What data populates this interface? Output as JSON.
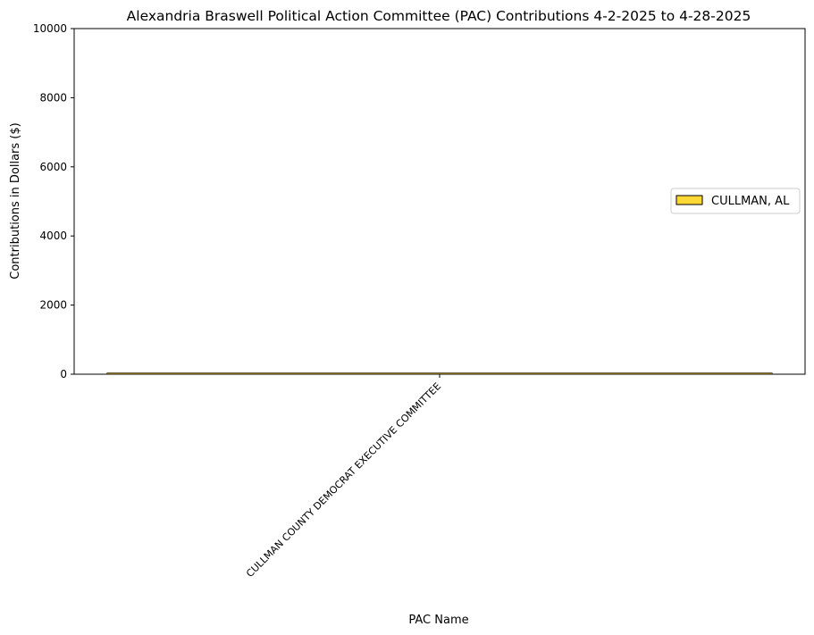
{
  "chart_data": {
    "type": "bar",
    "title": "Alexandria Braswell Political Action Committee (PAC) Contributions 4-2-2025 to 4-28-2025",
    "xlabel": "PAC Name",
    "ylabel": "Contributions in Dollars ($)",
    "ylim": [
      0,
      10000
    ],
    "yticks": [
      "0",
      "2000",
      "4000",
      "6000",
      "8000",
      "10000"
    ],
    "categories": [
      "CULLMAN COUNTY DEMOCRAT EXECUTIVE COMMITTEE"
    ],
    "series": [
      {
        "name": "CULLMAN, AL",
        "values": [
          25
        ],
        "color": "#fdd835"
      }
    ],
    "legend": "center-right",
    "grid": false
  }
}
